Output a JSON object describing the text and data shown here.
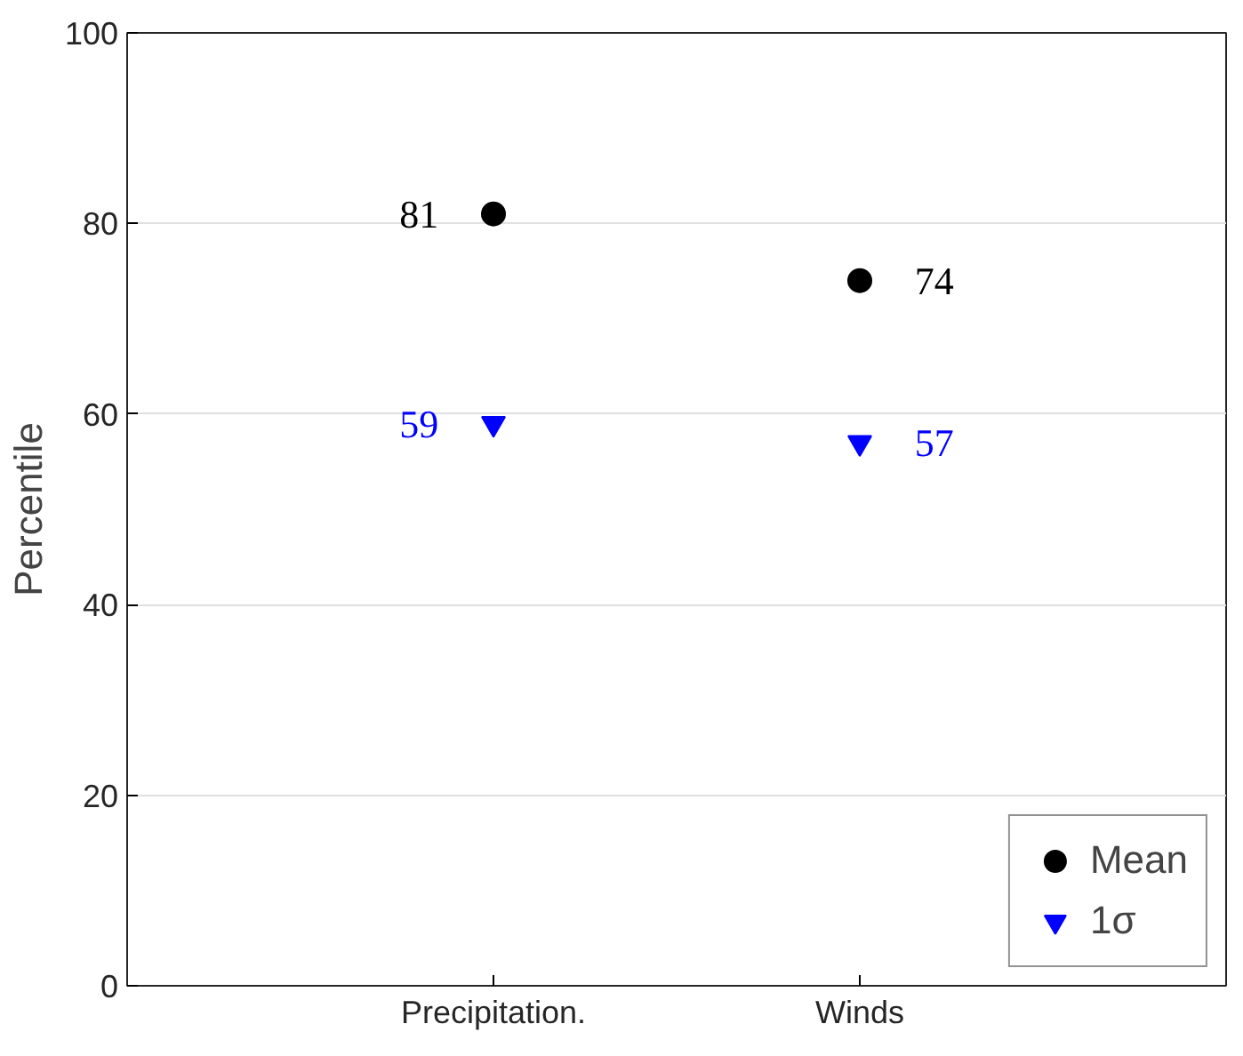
{
  "chart_data": {
    "type": "scatter",
    "ylabel": "Percentile",
    "categories": [
      "Precipitation.",
      "Winds"
    ],
    "ylim": [
      0,
      100
    ],
    "yticks": [
      0,
      20,
      40,
      60,
      80,
      100
    ],
    "grid": "y",
    "legend": "bottom right",
    "series": [
      {
        "name": "Mean",
        "color": "#000000",
        "marker": "circle",
        "values": [
          81,
          74
        ],
        "value_labels": [
          "81",
          "74"
        ]
      },
      {
        "name": "1σ",
        "color": "#0000ff",
        "marker": "triangle_down",
        "values": [
          59,
          57
        ],
        "value_labels": [
          "59",
          "57"
        ]
      }
    ]
  }
}
